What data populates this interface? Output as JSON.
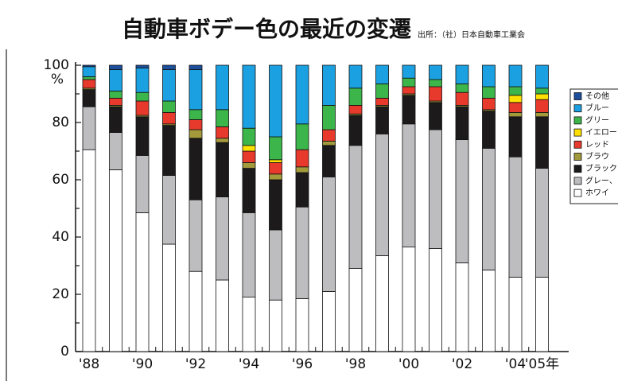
{
  "chart_data": {
    "type": "stacked_bar",
    "title": "自動車ボデー色の最近の変遷",
    "source": "出所：（社）日本自動車工業会",
    "y_unit": "%",
    "categories": [
      "'88",
      null,
      "'90",
      null,
      "'92",
      null,
      "'94",
      null,
      "'96",
      null,
      "'98",
      null,
      "'00",
      null,
      "'02",
      null,
      "'04",
      "'05年"
    ],
    "series": [
      {
        "name": "ホワイ",
        "color": "#ffffff",
        "values": [
          70.5,
          63.5,
          48.5,
          37.5,
          28,
          25,
          19,
          18,
          18.5,
          21,
          29,
          33.5,
          36.5,
          36,
          31,
          28.5,
          26,
          26
        ]
      },
      {
        "name": "グレー、",
        "color": "#bdbdc0",
        "values": [
          15,
          13,
          20,
          24,
          25,
          29,
          29.5,
          24.5,
          32,
          40,
          43,
          42.5,
          43,
          41.5,
          43,
          42.5,
          42,
          38
        ]
      },
      {
        "name": "ブラック",
        "color": "#1c1a1a",
        "values": [
          6,
          9,
          13.5,
          17.5,
          21.5,
          19,
          15.5,
          17.5,
          12,
          11,
          10.5,
          9.5,
          10,
          9.5,
          11.5,
          13,
          14,
          18
        ]
      },
      {
        "name": "ブラウ",
        "color": "#a39a3c",
        "values": [
          0.5,
          0.5,
          0.5,
          0.5,
          3,
          1.5,
          2,
          2,
          2,
          1.5,
          0.5,
          0.5,
          0.5,
          0.5,
          0.5,
          0.5,
          1.5,
          1.5
        ]
      },
      {
        "name": "レッド",
        "color": "#e8392d",
        "values": [
          3,
          2.5,
          5,
          4,
          3.5,
          4,
          4,
          4,
          6,
          4,
          3,
          2.5,
          2.5,
          5,
          4.5,
          4,
          3.5,
          4.5
        ]
      },
      {
        "name": "イエロー",
        "color": "#ffe000",
        "values": [
          0,
          0,
          0,
          0,
          0,
          0,
          2,
          1,
          0,
          0,
          0,
          0,
          0,
          0,
          0,
          0,
          2.5,
          2
        ]
      },
      {
        "name": "グリー",
        "color": "#3cb54b",
        "values": [
          1,
          2.5,
          3,
          4,
          3.5,
          6,
          6,
          8,
          9,
          8.5,
          6,
          5,
          3,
          2.5,
          3,
          4,
          3,
          2
        ]
      },
      {
        "name": "ブルー",
        "color": "#1ba1e1",
        "values": [
          3.5,
          7.5,
          8.5,
          11,
          14,
          15.5,
          22,
          25,
          20.5,
          14,
          8,
          6.5,
          4.5,
          5,
          6.5,
          7.5,
          7.5,
          8
        ]
      },
      {
        "name": "その他",
        "color": "#1d4f9c",
        "values": [
          0.5,
          1.5,
          1,
          1.5,
          1.5,
          0,
          0,
          0,
          0,
          0,
          0,
          0,
          0,
          0,
          0,
          0,
          0,
          0
        ]
      }
    ],
    "ylim": [
      0,
      100
    ],
    "yticks": [
      0,
      20,
      40,
      60,
      80,
      100
    ],
    "minor_yticks": [
      10,
      30,
      50,
      70,
      90
    ]
  }
}
